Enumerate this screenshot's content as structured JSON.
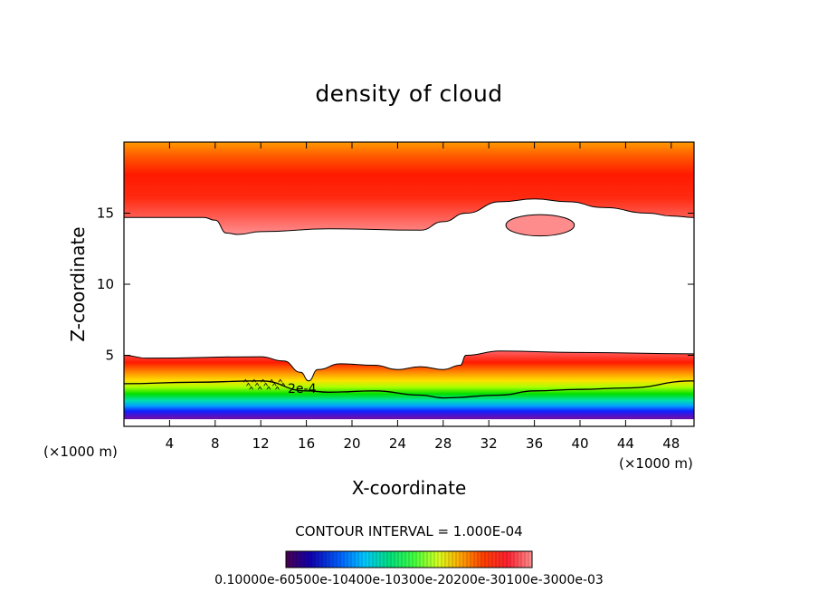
{
  "chart_data": {
    "type": "heatmap",
    "title": "density of cloud",
    "xlabel": "X-coordinate",
    "ylabel": "Z-coordinate",
    "x_unit": "(×1000 m)",
    "xlim": [
      0,
      50
    ],
    "ylim": [
      0,
      20
    ],
    "x_ticks": [
      4,
      8,
      12,
      16,
      20,
      24,
      28,
      32,
      36,
      40,
      44,
      48
    ],
    "y_ticks": [
      5,
      10,
      15
    ],
    "contour_interval_text": "CONTOUR INTERVAL = 1.000E-04",
    "contour_label": "2e-4",
    "colorbar_text": "0.10000e-60500e-10400e-10300e-20200e-30100e-3000e-03",
    "upper_layer": {
      "value_peak": 0.0005,
      "lower_boundary_x": [
        0,
        7,
        8,
        9,
        10,
        12,
        18,
        26,
        28,
        30,
        33,
        36,
        39,
        42,
        46,
        48,
        50
      ],
      "lower_boundary_z": [
        14.7,
        14.7,
        14.5,
        13.6,
        13.5,
        13.7,
        13.9,
        13.8,
        14.4,
        15.0,
        15.8,
        16.0,
        15.8,
        15.4,
        15.0,
        14.8,
        14.7
      ],
      "top_z": 20
    },
    "isolated_patch": {
      "x_range": [
        33.5,
        39.5
      ],
      "z_range": [
        13.4,
        14.9
      ],
      "value": 0.0001
    },
    "lower_layer": {
      "top_x": [
        0,
        2,
        12,
        14,
        15.5,
        16.2,
        17,
        19,
        22,
        24,
        26,
        28,
        29.5,
        30,
        33,
        40,
        50
      ],
      "top_z": [
        5.0,
        4.8,
        4.9,
        4.6,
        3.8,
        3.2,
        4.0,
        4.4,
        4.3,
        4.0,
        4.2,
        4.0,
        4.3,
        5.0,
        5.3,
        5.2,
        5.1
      ],
      "bottom_z": 0.5,
      "value_peak": 0.0005
    },
    "contour_2e-4_x": [
      0,
      6,
      12,
      16,
      18,
      22,
      26,
      28,
      33,
      36,
      40,
      44,
      50
    ],
    "contour_2e-4_z": [
      3.0,
      3.1,
      3.2,
      2.5,
      2.4,
      2.5,
      2.2,
      2.0,
      2.2,
      2.5,
      2.6,
      2.7,
      3.2
    ]
  }
}
